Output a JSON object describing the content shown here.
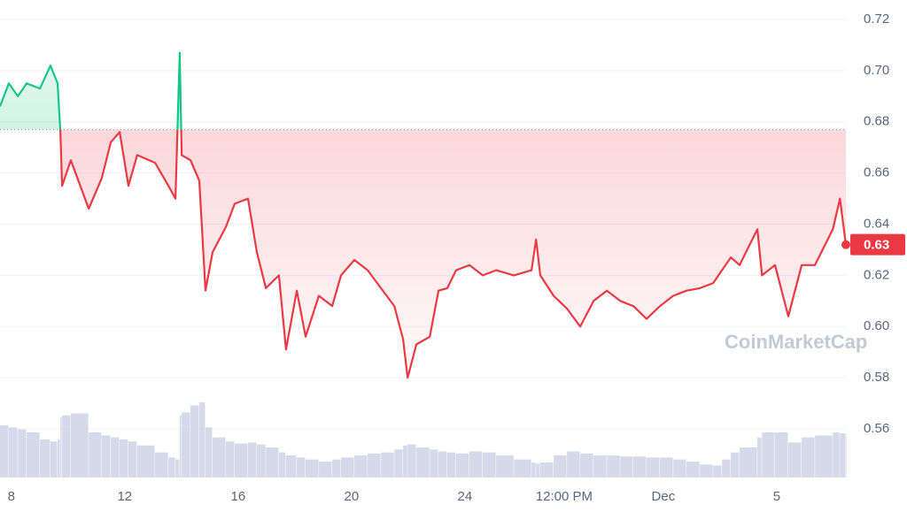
{
  "chart_data": {
    "type": "line",
    "watermark": "CoinMarketCap",
    "x": [
      7.6,
      7.91,
      8.23,
      8.54,
      9.01,
      9.38,
      9.63,
      9.73,
      9.79,
      10.1,
      10.73,
      11.19,
      11.51,
      11.82,
      12.13,
      12.44,
      13.07,
      13.54,
      13.79,
      13.94,
      14.01,
      14.32,
      14.63,
      14.85,
      15.1,
      15.57,
      15.88,
      16.35,
      16.66,
      16.98,
      17.44,
      17.69,
      18.07,
      18.38,
      18.85,
      19.32,
      19.63,
      20.1,
      20.57,
      21.04,
      21.51,
      21.82,
      21.98,
      22.29,
      22.76,
      23.07,
      23.38,
      23.69,
      24.16,
      24.63,
      25.1,
      25.73,
      26.35,
      26.51,
      26.66,
      27.13,
      27.6,
      28.07,
      28.54,
      29.01,
      29.48,
      29.94,
      30.41,
      30.88,
      31.35,
      31.82,
      32.29,
      32.76,
      33.07,
      33.38,
      33.69,
      34.32,
      34.48,
      34.94,
      35.41,
      35.88,
      36.35,
      36.98,
      37.23,
      37.44
    ],
    "series": [
      {
        "values": [
          0.686,
          0.695,
          0.69,
          0.695,
          0.693,
          0.702,
          0.695,
          0.676,
          0.655,
          0.665,
          0.646,
          0.658,
          0.672,
          0.676,
          0.655,
          0.667,
          0.664,
          0.655,
          0.65,
          0.707,
          0.667,
          0.665,
          0.657,
          0.614,
          0.629,
          0.639,
          0.648,
          0.65,
          0.629,
          0.615,
          0.62,
          0.591,
          0.614,
          0.596,
          0.612,
          0.608,
          0.62,
          0.626,
          0.622,
          0.615,
          0.608,
          0.595,
          0.58,
          0.593,
          0.596,
          0.614,
          0.615,
          0.622,
          0.624,
          0.62,
          0.622,
          0.62,
          0.622,
          0.634,
          0.62,
          0.612,
          0.607,
          0.6,
          0.61,
          0.614,
          0.61,
          0.608,
          0.603,
          0.608,
          0.612,
          0.614,
          0.615,
          0.617,
          0.622,
          0.627,
          0.624,
          0.638,
          0.62,
          0.624,
          0.604,
          0.624,
          0.624,
          0.638,
          0.65,
          0.632
        ],
        "up_color": "#16c784",
        "down_color": "#ea3943"
      },
      {
        "values": [
          52,
          50,
          48,
          45,
          38,
          36,
          38,
          60,
          62,
          64,
          45,
          42,
          40,
          38,
          36,
          32,
          25,
          20,
          18,
          62,
          65,
          72,
          75,
          50,
          40,
          36,
          34,
          35,
          33,
          30,
          25,
          22,
          20,
          18,
          16,
          18,
          20,
          22,
          24,
          25,
          28,
          32,
          33,
          30,
          28,
          26,
          25,
          24,
          26,
          25,
          22,
          18,
          15,
          14,
          15,
          22,
          26,
          24,
          22,
          22,
          21,
          21,
          20,
          20,
          18,
          16,
          13,
          12,
          18,
          25,
          30,
          40,
          45,
          45,
          35,
          40,
          42,
          45,
          44,
          44
        ],
        "color": "#c9d1e3"
      }
    ],
    "baseline": 0.677,
    "last_price_label": "0.63",
    "xlim": [
      7.6,
      37.44
    ],
    "xticks": [
      8,
      12,
      16,
      20,
      24,
      {
        "value": 27.5,
        "label": "12:00 PM"
      },
      {
        "value": 31,
        "label": "Dec"
      },
      {
        "value": 35,
        "label": "5"
      }
    ],
    "ylim": [
      0.541,
      0.7276
    ],
    "yticks": [
      0.56,
      0.58,
      {
        "value": 0.6,
        "label": "0.60"
      },
      0.62,
      0.64,
      0.66,
      0.68,
      {
        "value": 0.7,
        "label": "0.70"
      },
      0.72
    ],
    "grid": true
  }
}
